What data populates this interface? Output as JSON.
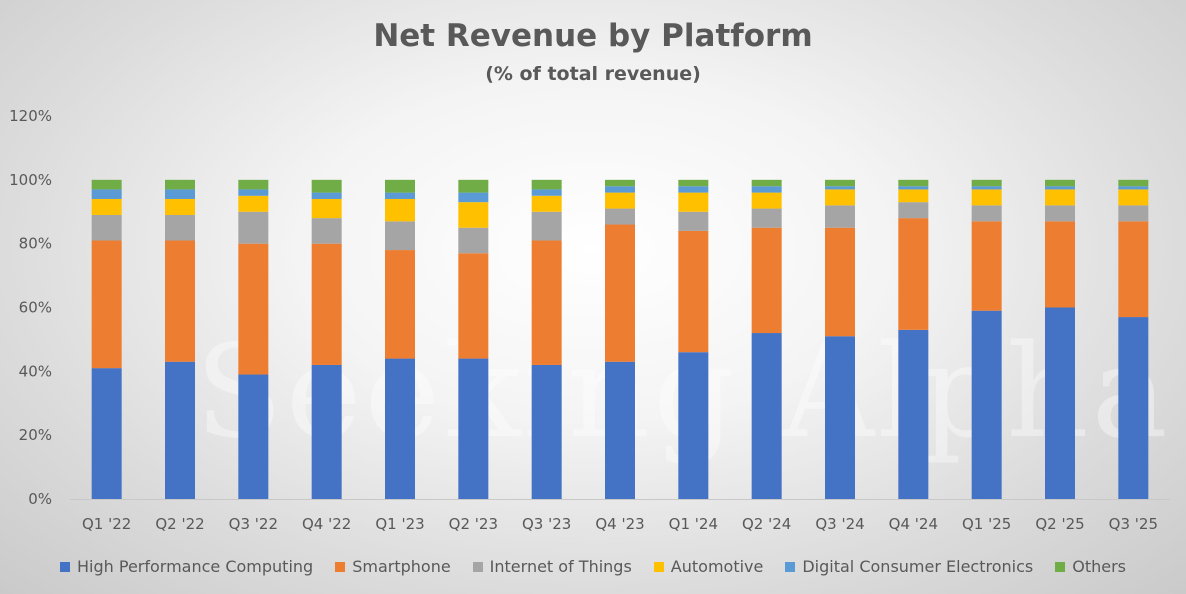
{
  "chart_data": {
    "type": "bar",
    "stacked": true,
    "title": "Net Revenue by Platform",
    "subtitle": "(% of total revenue)",
    "watermark": "Seeking Alpha",
    "ylim": [
      0,
      120
    ],
    "yticks": [
      "0%",
      "20%",
      "40%",
      "60%",
      "80%",
      "100%",
      "120%"
    ],
    "legend_position": "bottom",
    "categories": [
      "Q1 '22",
      "Q2 '22",
      "Q3 '22",
      "Q4 '22",
      "Q1 '23",
      "Q2 '23",
      "Q3 '23",
      "Q4 '23",
      "Q1 '24",
      "Q2 '24",
      "Q3 '24",
      "Q4 '24",
      "Q1 '25",
      "Q2 '25",
      "Q3 '25"
    ],
    "series": [
      {
        "name": "High Performance Computing",
        "color": "#4472c4",
        "values": [
          41,
          43,
          39,
          42,
          44,
          44,
          42,
          43,
          46,
          52,
          51,
          53,
          59,
          60,
          57
        ]
      },
      {
        "name": "Smartphone",
        "color": "#ed7d31",
        "values": [
          40,
          38,
          41,
          38,
          34,
          33,
          39,
          43,
          38,
          33,
          34,
          35,
          28,
          27,
          30
        ]
      },
      {
        "name": "Internet of Things",
        "color": "#a5a5a5",
        "values": [
          8,
          8,
          10,
          8,
          9,
          8,
          9,
          5,
          6,
          6,
          7,
          5,
          5,
          5,
          5
        ]
      },
      {
        "name": "Automotive",
        "color": "#ffc000",
        "values": [
          5,
          5,
          5,
          6,
          7,
          8,
          5,
          5,
          6,
          5,
          5,
          4,
          5,
          5,
          5
        ]
      },
      {
        "name": "Digital Consumer Electronics",
        "color": "#5b9bd5",
        "values": [
          3,
          3,
          2,
          2,
          2,
          3,
          2,
          2,
          2,
          2,
          1,
          1,
          1,
          1,
          1
        ]
      },
      {
        "name": "Others",
        "color": "#70ad47",
        "values": [
          3,
          3,
          3,
          4,
          4,
          4,
          3,
          2,
          2,
          2,
          2,
          2,
          2,
          2,
          2
        ]
      }
    ]
  }
}
